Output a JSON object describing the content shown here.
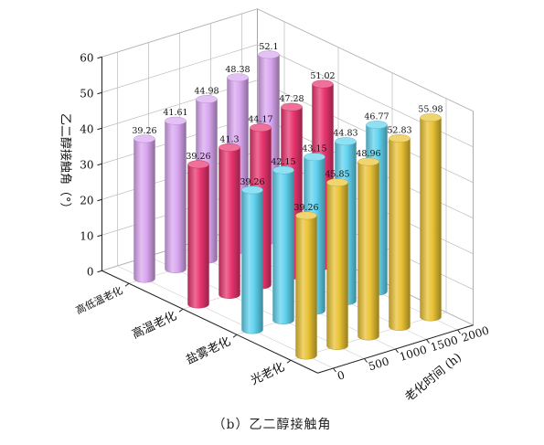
{
  "caption": "（b）乙二醇接触角",
  "chart_data": {
    "type": "bar",
    "variant": "3d-column",
    "title": "",
    "zlabel": "乙二醇接触角（°）",
    "depth_label": "老化时间 (h)",
    "categories": [
      "高低温老化",
      "高温老化",
      "盐雾老化",
      "光老化"
    ],
    "depth_ticks": [
      0,
      500,
      1000,
      1500,
      2000
    ],
    "z_ticks": [
      0,
      10,
      20,
      30,
      40,
      50,
      60
    ],
    "zlim": [
      0,
      60
    ],
    "series": [
      {
        "category": "高低温老化",
        "color": "#d9a6f0",
        "x": [
          0,
          500,
          1000,
          1500,
          2000
        ],
        "values": [
          39.26,
          41.61,
          44.98,
          48.38,
          52.1
        ],
        "labels": [
          "39.26",
          "41.61",
          "44.98",
          "48.38",
          "52.1"
        ]
      },
      {
        "category": "高温老化",
        "color": "#e8346e",
        "x": [
          0,
          500,
          1000,
          1500,
          2000
        ],
        "values": [
          39.26,
          41.3,
          44.17,
          47.28,
          51.02
        ],
        "labels": [
          "39.26",
          "41.3",
          "44.17",
          "47.28",
          "51.02"
        ]
      },
      {
        "category": "盐雾老化",
        "color": "#5fd2ee",
        "x": [
          0,
          500,
          1000,
          1500,
          2000
        ],
        "values": [
          39.26,
          42.15,
          43.15,
          44.83,
          46.77
        ],
        "labels": [
          "39.26",
          "42.15",
          "43.15",
          "44.83",
          "46.77"
        ]
      },
      {
        "category": "光老化",
        "color": "#e9c233",
        "x": [
          0,
          500,
          1000,
          1500,
          2000
        ],
        "values": [
          39.26,
          45.85,
          48.96,
          52.83,
          55.98
        ],
        "labels": [
          "39.26",
          "45.85",
          "48.96",
          "52.83",
          "55.98"
        ]
      }
    ]
  }
}
